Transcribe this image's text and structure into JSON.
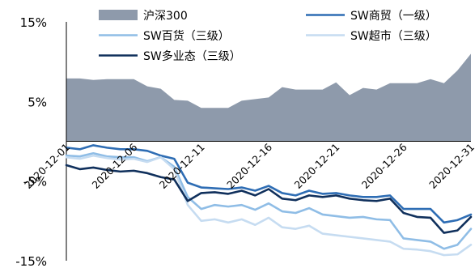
{
  "chart_data": {
    "type": "line",
    "y_ticks": [
      "15%",
      "5%",
      "-5%",
      "-15%"
    ],
    "y_tick_values": [
      15,
      5,
      -5,
      -15
    ],
    "ylim": [
      -15,
      15
    ],
    "x_tick_labels": [
      "2020-12-01",
      "2020-12-06",
      "2020-12-11",
      "2020-12-16",
      "2020-12-21",
      "2020-12-26",
      "2020-12-31"
    ],
    "x_tick_indices": [
      0,
      5,
      10,
      15,
      20,
      25,
      30
    ],
    "x": [
      "2020-12-01",
      "2020-12-02",
      "2020-12-03",
      "2020-12-04",
      "2020-12-05",
      "2020-12-06",
      "2020-12-07",
      "2020-12-08",
      "2020-12-09",
      "2020-12-10",
      "2020-12-11",
      "2020-12-12",
      "2020-12-13",
      "2020-12-14",
      "2020-12-15",
      "2020-12-16",
      "2020-12-17",
      "2020-12-18",
      "2020-12-19",
      "2020-12-20",
      "2020-12-21",
      "2020-12-22",
      "2020-12-23",
      "2020-12-24",
      "2020-12-25",
      "2020-12-26",
      "2020-12-27",
      "2020-12-28",
      "2020-12-29",
      "2020-12-30",
      "2020-12-31"
    ],
    "series": [
      {
        "name": "沪深300",
        "kind": "area",
        "color": "#8e9aab",
        "values": [
          7.9,
          7.9,
          7.7,
          7.8,
          7.8,
          7.8,
          6.9,
          6.6,
          5.2,
          5.1,
          4.2,
          4.2,
          4.2,
          5.1,
          5.3,
          5.5,
          6.8,
          6.5,
          6.5,
          6.5,
          7.4,
          5.8,
          6.7,
          6.5,
          7.3,
          7.3,
          7.3,
          7.8,
          7.3,
          8.9,
          11.0
        ]
      },
      {
        "name": "SW商贸（一级）",
        "kind": "line",
        "color": "#2e6db4",
        "values": [
          -0.8,
          -1.0,
          -0.5,
          -0.8,
          -1.0,
          -1.0,
          -1.2,
          -1.8,
          -2.2,
          -5.2,
          -5.8,
          -5.9,
          -6.0,
          -5.8,
          -6.2,
          -5.6,
          -6.5,
          -6.8,
          -6.2,
          -6.6,
          -6.5,
          -6.8,
          -7.0,
          -7.0,
          -6.8,
          -8.5,
          -8.5,
          -8.5,
          -10.2,
          -9.9,
          -9.2
        ]
      },
      {
        "name": "SW百货（三级）",
        "kind": "line",
        "color": "#8fbde6",
        "values": [
          -1.8,
          -1.9,
          -1.5,
          -1.9,
          -2.0,
          -2.0,
          -2.5,
          -2.0,
          -3.2,
          -7.0,
          -8.5,
          -8.0,
          -8.2,
          -8.0,
          -8.6,
          -7.8,
          -8.8,
          -9.0,
          -8.4,
          -9.2,
          -9.4,
          -9.6,
          -9.5,
          -9.8,
          -9.9,
          -12.2,
          -12.4,
          -12.6,
          -13.5,
          -13.0,
          -11.0
        ]
      },
      {
        "name": "SW超市（三级）",
        "kind": "line",
        "color": "#c6dcf1",
        "values": [
          -2.0,
          -2.2,
          -1.8,
          -2.1,
          -2.3,
          -2.2,
          -2.6,
          -2.0,
          -3.5,
          -8.0,
          -10.0,
          -9.8,
          -10.2,
          -9.8,
          -10.5,
          -9.6,
          -10.8,
          -11.0,
          -10.6,
          -11.6,
          -11.8,
          -12.0,
          -12.2,
          -12.4,
          -12.6,
          -13.5,
          -13.6,
          -13.8,
          -14.3,
          -14.2,
          -13.0
        ]
      },
      {
        "name": "SW多业态（三级）",
        "kind": "line",
        "color": "#10305c",
        "values": [
          -3.0,
          -3.5,
          -3.3,
          -3.6,
          -3.8,
          -3.7,
          -4.0,
          -4.5,
          -4.8,
          -7.5,
          -6.5,
          -6.4,
          -6.6,
          -6.2,
          -6.8,
          -6.0,
          -7.2,
          -7.4,
          -6.8,
          -7.0,
          -6.8,
          -7.2,
          -7.4,
          -7.5,
          -7.2,
          -9.0,
          -9.5,
          -9.6,
          -11.5,
          -11.2,
          -9.5
        ]
      }
    ]
  }
}
